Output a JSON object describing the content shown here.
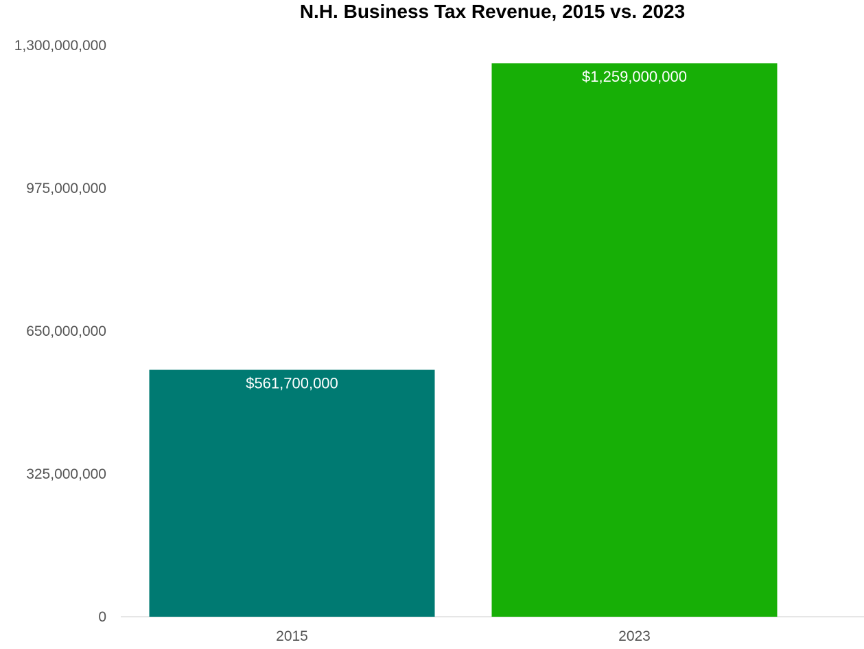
{
  "chart_data": {
    "type": "bar",
    "title": "N.H. Business Tax Revenue, 2015 vs. 2023",
    "xlabel": "",
    "ylabel": "",
    "categories": [
      "2015",
      "2023"
    ],
    "values": [
      561700000,
      1259000000
    ],
    "data_labels": [
      "$561,700,000",
      "$1,259,000,000"
    ],
    "bar_colors": [
      "#007A72",
      "#17AF06"
    ],
    "ylim": [
      0,
      1300000000
    ],
    "yticks": [
      0,
      325000000,
      650000000,
      975000000,
      1300000000
    ],
    "ytick_labels": [
      "0",
      "325,000,000",
      "650,000,000",
      "975,000,000",
      "1,300,000,000"
    ],
    "grid": false,
    "legend": "none"
  }
}
